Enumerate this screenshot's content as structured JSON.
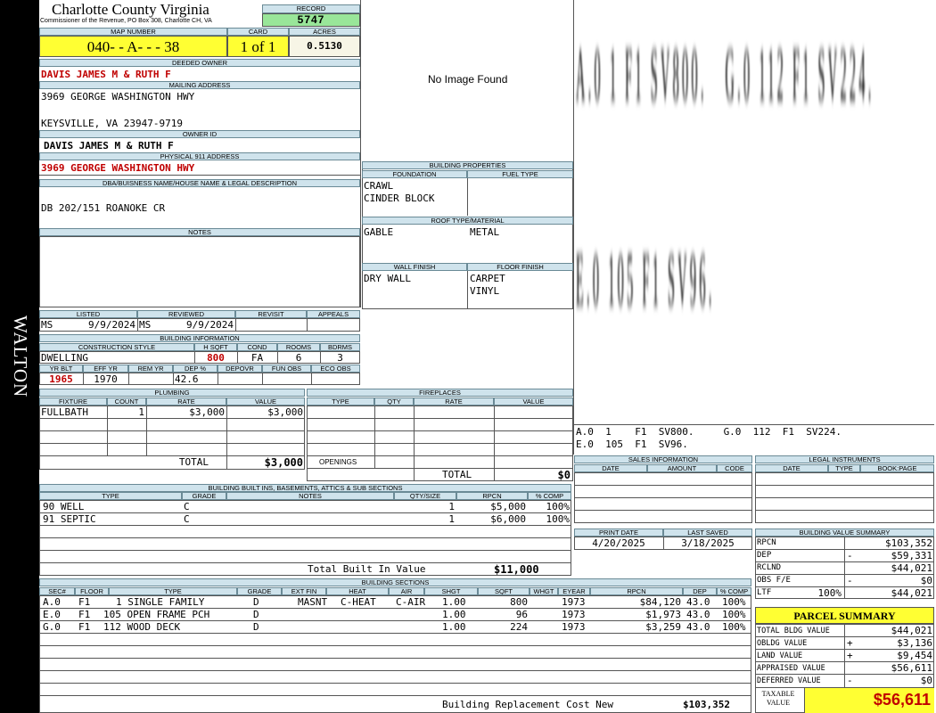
{
  "side_label": "WALTON",
  "header": {
    "county": "Charlotte County Virginia",
    "commissioner": "Commissioner of the Revenue, PO Box 308, Charlotte CH, VA",
    "record_label": "RECORD",
    "record_no": "5747",
    "map_label": "MAP NUMBER",
    "map_number": "040- - A- - - 38",
    "card_label": "CARD",
    "card": "1 of 1",
    "acres_label": "ACRES",
    "acres": "0.5130"
  },
  "owner": {
    "deeded_label": "DEEDED OWNER",
    "deeded": "DAVIS JAMES M & RUTH F",
    "mailing_label": "MAILING ADDRESS",
    "mailing1": "3969 GEORGE WASHINGTON HWY",
    "mailing2": "KEYSVILLE, VA 23947-9719",
    "owner_id_label": "OWNER ID",
    "owner_id": "DAVIS JAMES M & RUTH F",
    "physical_label": "PHYSICAL 911 ADDRESS",
    "physical": "3969 GEORGE WASHINGTON HWY",
    "legal_label": "DBA/BUISNESS NAME/HOUSE NAME & LEGAL DESCRIPTION",
    "legal": "DB 202/151 ROANOKE CR",
    "notes_label": "NOTES"
  },
  "image": {
    "placeholder": "No Image Found"
  },
  "building_props": {
    "title": "BUILDING PROPERTIES",
    "foundation_label": "FOUNDATION",
    "fuel_label": "FUEL TYPE",
    "foundation1": "CRAWL",
    "foundation2": "CINDER BLOCK",
    "roof_label": "ROOF TYPE/MATERIAL",
    "roof_type": "GABLE",
    "roof_material": "METAL",
    "wall_label": "WALL FINISH",
    "floor_label": "FLOOR FINISH",
    "wall": "DRY WALL",
    "floor1": "CARPET",
    "floor2": "VINYL"
  },
  "sketch": {
    "line1": "A.0 1 F1 SV800.   G.0 112 F1 SV224.",
    "line2": "E.0 105 F1 SV96.",
    "caption1": "A.0  1    F1  SV800.     G.0  112  F1  SV224.",
    "caption2": "E.0  105  F1  SV96."
  },
  "review": {
    "listed_label": "LISTED",
    "reviewed_label": "REVIEWED",
    "revisit_label": "REVISIT",
    "appeals_label": "APPEALS",
    "listed_by": "MS",
    "listed_date": "9/9/2024",
    "reviewed_by": "MS",
    "reviewed_date": "9/9/2024"
  },
  "building_info": {
    "title": "BUILDING INFORMATION",
    "style_label": "CONSTRUCTION STYLE",
    "hsqft_label": "H SQFT",
    "cond_label": "COND",
    "rooms_label": "ROOMS",
    "bdrms_label": "BDRMS",
    "style": "DWELLING",
    "hsqft": "800",
    "cond": "FA",
    "rooms": "6",
    "bdrms": "3",
    "yrblt_label": "YR BLT",
    "effyr_label": "EFF YR",
    "remyr_label": "REM YR",
    "dep_label": "DEP %",
    "depovr_label": "DEPOVR",
    "funobs_label": "FUN OBS",
    "ecoobs_label": "ECO OBS",
    "yrblt": "1965",
    "effyr": "1970",
    "dep": "42.6"
  },
  "plumbing": {
    "title": "PLUMBING",
    "cols": [
      "FIXTURE",
      "COUNT",
      "RATE",
      "VALUE"
    ],
    "rows": [
      {
        "fixture": "FULLBATH",
        "count": "1",
        "rate": "$3,000",
        "value": "$3,000"
      }
    ],
    "total_label": "TOTAL",
    "total": "$3,000"
  },
  "fireplaces": {
    "title": "FIREPLACES",
    "cols": [
      "TYPE",
      "QTY",
      "RATE",
      "VALUE"
    ],
    "openings_label": "OPENINGS",
    "total_label": "TOTAL",
    "total": "$0"
  },
  "sales": {
    "title": "SALES INFORMATION",
    "cols": [
      "DATE",
      "AMOUNT",
      "CODE"
    ]
  },
  "legal_instruments": {
    "title": "LEGAL INSTRUMENTS",
    "cols": [
      "DATE",
      "TYPE",
      "BOOK:PAGE"
    ]
  },
  "dates": {
    "print_label": "PRINT DATE",
    "saved_label": "LAST SAVED",
    "print": "4/20/2025",
    "saved": "3/18/2025"
  },
  "built_ins": {
    "title": "BUILDING BUILT INS, BASEMENTS, ATTICS & SUB SECTIONS",
    "cols": [
      "TYPE",
      "GRADE",
      "NOTES",
      "QTY/SIZE",
      "RPCN",
      "% COMP"
    ],
    "rows": [
      {
        "type": "90 WELL",
        "grade": "C",
        "notes": "",
        "qty": "1",
        "rpcn": "$5,000",
        "comp": "100%"
      },
      {
        "type": "91 SEPTIC",
        "grade": "C",
        "notes": "",
        "qty": "1",
        "rpcn": "$6,000",
        "comp": "100%"
      }
    ],
    "total_label": "Total Built In Value",
    "total": "$11,000"
  },
  "value_summary": {
    "title": "BUILDING VALUE SUMMARY",
    "rows": [
      {
        "label": "RPCN",
        "sign": "",
        "value": "$103,352"
      },
      {
        "label": "DEP",
        "sign": "-",
        "value": "$59,331"
      },
      {
        "label": "RCLND",
        "sign": "",
        "value": "$44,021"
      },
      {
        "label": "OBS F/E",
        "sign": "-",
        "value": "$0"
      },
      {
        "label": "LTF",
        "pct": "100%",
        "sign": "",
        "value": "$44,021"
      }
    ]
  },
  "parcel": {
    "title": "PARCEL SUMMARY",
    "rows": [
      {
        "label": "TOTAL BLDG VALUE",
        "sign": "",
        "value": "$44,021"
      },
      {
        "label": "OBLDG VALUE",
        "sign": "+",
        "value": "$3,136"
      },
      {
        "label": "LAND VALUE",
        "sign": "+",
        "value": "$9,454"
      },
      {
        "label": "APPRAISED VALUE",
        "sign": "",
        "value": "$56,611"
      },
      {
        "label": "DEFERRED VALUE",
        "sign": "-",
        "value": "$0"
      }
    ],
    "taxable_label1": "TAXABLE",
    "taxable_label2": "VALUE",
    "taxable": "$56,611"
  },
  "sections": {
    "title": "BUILDING SECTIONS",
    "cols": [
      "SEC#",
      "FLOOR",
      "TYPE",
      "GRADE",
      "EXT FIN",
      "HEAT",
      "AIR",
      "SHGT",
      "SQFT",
      "WHGT",
      "EYEAR",
      "RPCN",
      "DEP",
      "% COMP"
    ],
    "rows": [
      {
        "sec": "A.0",
        "floor": "F1",
        "type": "1 SINGLE FAMILY",
        "grade": "D",
        "ext": "MASNT",
        "heat": "C-HEAT",
        "air": "C-AIR",
        "shgt": "1.00",
        "sqft": "800",
        "whgt": "",
        "eyear": "1973",
        "rpcn": "$84,120",
        "dep": "43.0",
        "comp": "100%"
      },
      {
        "sec": "E.0",
        "floor": "F1",
        "type": "105 OPEN FRAME PCH",
        "grade": "D",
        "ext": "",
        "heat": "",
        "air": "",
        "shgt": "1.00",
        "sqft": "96",
        "whgt": "",
        "eyear": "1973",
        "rpcn": "$1,973",
        "dep": "43.0",
        "comp": "100%"
      },
      {
        "sec": "G.0",
        "floor": "F1",
        "type": "112 WOOD DECK",
        "grade": "D",
        "ext": "",
        "heat": "",
        "air": "",
        "shgt": "1.00",
        "sqft": "224",
        "whgt": "",
        "eyear": "1973",
        "rpcn": "$3,259",
        "dep": "43.0",
        "comp": "100%"
      }
    ],
    "footer_label": "Building Replacement Cost New",
    "footer_value": "$103,352"
  },
  "colors": {
    "accent_yellow": "#ffff33",
    "record_green": "#99e699",
    "header_blue": "#cfe3ec",
    "red_text": "#c00000",
    "sidebar": "#000000"
  }
}
